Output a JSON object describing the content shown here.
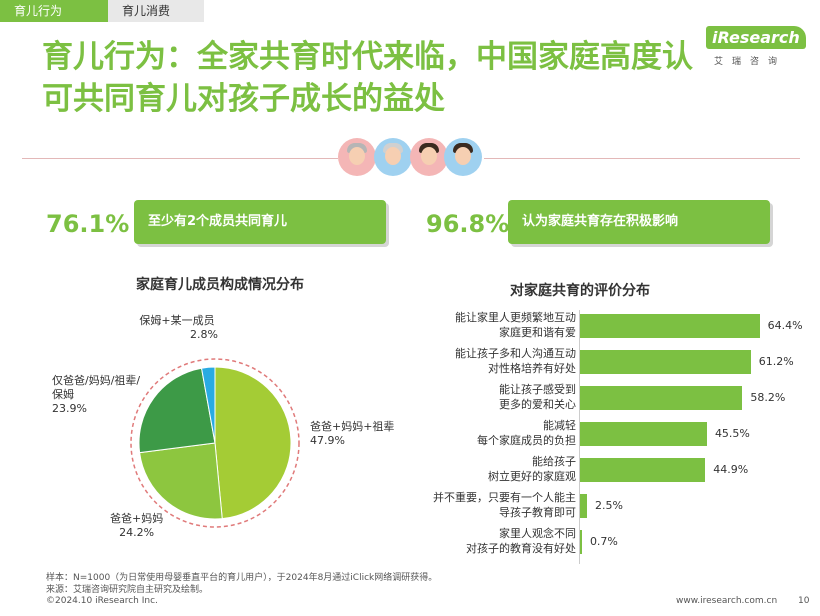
{
  "tabs": [
    {
      "label": "育儿行为"
    },
    {
      "label": "育儿消费"
    }
  ],
  "logo": {
    "main": "iResearch",
    "sub": "艾瑞咨询"
  },
  "title": "育儿行为：全家共育时代来临，中国家庭高度认可共同育儿对孩子成长的益处",
  "stats": [
    {
      "value": "76.1%",
      "label": "至少有2个成员共同育儿"
    },
    {
      "value": "96.8%",
      "label": "认为家庭共育存在积极影响"
    }
  ],
  "chart_data": [
    {
      "type": "pie",
      "title": "家庭育儿成员构成情况分布",
      "slices": [
        {
          "label": "爸爸+妈妈+祖辈",
          "value": 47.9,
          "value_label": "47.9%",
          "color": "#a4cc35"
        },
        {
          "label": "爸爸+妈妈",
          "value": 24.2,
          "value_label": "24.2%",
          "color": "#8dc63f"
        },
        {
          "label": "仅爸爸/妈妈/祖辈/保姆",
          "value": 23.9,
          "value_label": "23.9%",
          "color": "#3d9a47"
        },
        {
          "label": "保姆+某一成员",
          "value": 2.8,
          "value_label": "2.8%",
          "color": "#29abe2"
        }
      ]
    },
    {
      "type": "bar",
      "orientation": "horizontal",
      "title": "对家庭共育的评价分布",
      "categories": [
        "能让家里人更频繁地互动家庭更和谐有爱",
        "能让孩子多和人沟通互动对性格培养有好处",
        "能让孩子感受到更多的爱和关心",
        "能减轻每个家庭成员的负担",
        "能给孩子树立更好的家庭观",
        "并不重要，只要有一个人能主导孩子教育即可",
        "家里人观念不同对孩子的教育没有好处"
      ],
      "category_lines": [
        [
          "能让家里人更频繁地互动",
          "家庭更和谐有爱"
        ],
        [
          "能让孩子多和人沟通互动",
          "对性格培养有好处"
        ],
        [
          "能让孩子感受到",
          "更多的爱和关心"
        ],
        [
          "能减轻",
          "每个家庭成员的负担"
        ],
        [
          "能给孩子",
          "树立更好的家庭观"
        ],
        [
          "并不重要，只要有一个人能主",
          "导孩子教育即可"
        ],
        [
          "家里人观念不同",
          "对孩子的教育没有好处"
        ]
      ],
      "values": [
        64.4,
        61.2,
        58.2,
        45.5,
        44.9,
        2.5,
        0.7
      ],
      "value_labels": [
        "64.4%",
        "61.2%",
        "58.2%",
        "45.5%",
        "44.9%",
        "2.5%",
        "0.7%"
      ],
      "xlim": [
        0,
        100
      ],
      "bar_color": "#7cc042"
    }
  ],
  "footnotes": [
    "样本：N=1000（为日常使用母婴垂直平台的育儿用户），于2024年8月通过iClick网络调研获得。",
    "来源：艾瑞咨询研究院自主研究及绘制。"
  ],
  "footer": {
    "copyright": "©2024.10 iResearch Inc.",
    "site": "www.iresearch.com.cn",
    "page": "10"
  }
}
